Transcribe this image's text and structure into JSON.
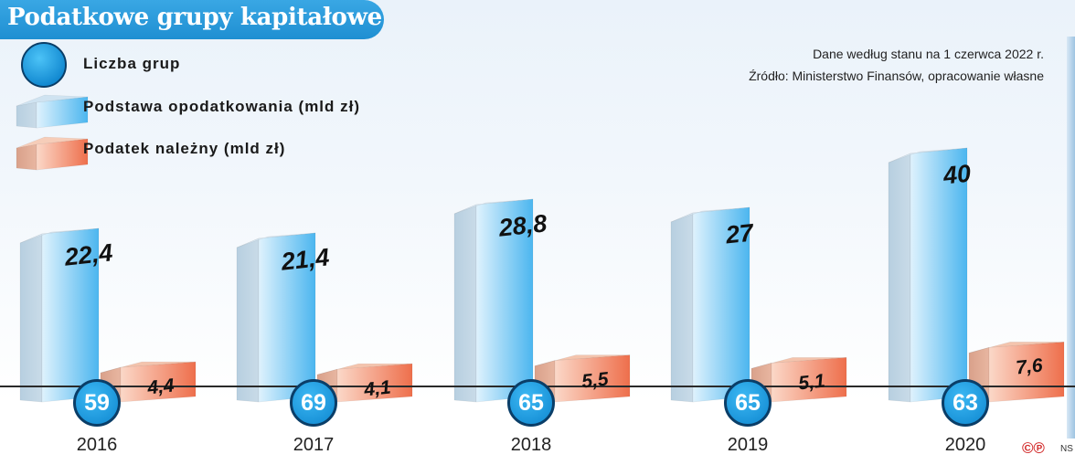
{
  "chart_data": {
    "type": "bar",
    "title": "Podatkowe grupy kapitałowe",
    "categories": [
      "2016",
      "2017",
      "2018",
      "2019",
      "2020"
    ],
    "series": [
      {
        "name": "Liczba grup",
        "values": [
          59,
          69,
          65,
          65,
          63
        ]
      },
      {
        "name": "Podstawa opodatkowania (mld zł)",
        "values": [
          22.4,
          21.4,
          28.8,
          27,
          40
        ]
      },
      {
        "name": "Podatek należny (mld zł)",
        "values": [
          4.4,
          4.1,
          5.5,
          5.1,
          7.6
        ]
      }
    ],
    "value_labels": {
      "groups": [
        "59",
        "69",
        "65",
        "65",
        "63"
      ],
      "base": [
        "22,4",
        "21,4",
        "28,8",
        "27",
        "40"
      ],
      "tax": [
        "4,4",
        "4,1",
        "5,5",
        "5,1",
        "7,6"
      ]
    },
    "legend": [
      "Liczba grup",
      "Podstawa opodatkowania (mld zł)",
      "Podatek należny (mld zł)"
    ],
    "legend_labels": [
      "Liczba grup",
      "Podstawa opodatkowania (mld zł)",
      "Podatek należny (mld zł)"
    ],
    "notes": [
      "Dane według stanu na 1 czerwca 2022 r.",
      "Źródło: Ministerstwo Finansów, opracowanie własne"
    ],
    "legend_position": "top-left",
    "grid": false
  },
  "colors": {
    "title_bar": "#2196d6",
    "base_bar": "#9ad4f5",
    "tax_bar": "#f2957a",
    "circle": "#1a9ee6",
    "axis": "#2a2a2a"
  },
  "footer": {
    "logo": "©℗",
    "initials": "NS"
  }
}
